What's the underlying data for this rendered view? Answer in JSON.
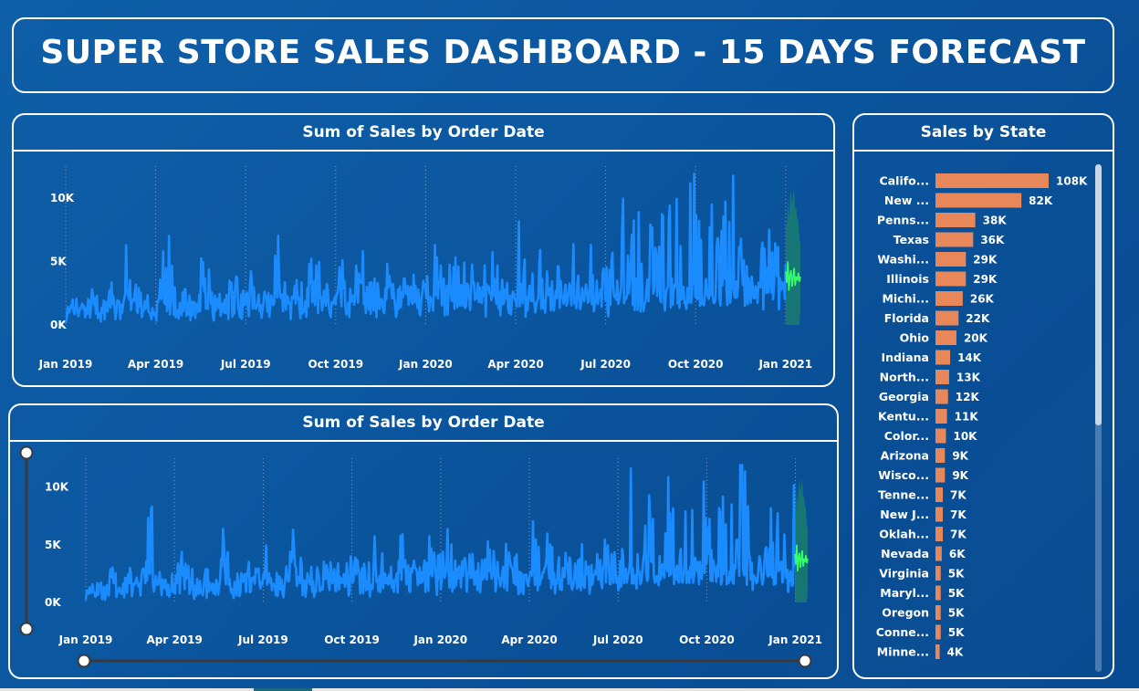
{
  "title": "SUPER STORE SALES DASHBOARD - 15 DAYS FORECAST",
  "colors": {
    "actual_line": "#1a8cff",
    "forecast_line": "#33ff66",
    "forecast_band": "#1e8a62",
    "bar": "#e8875a",
    "panel_border": "#ffffff",
    "background": "#0b57a0"
  },
  "chart1": {
    "header": "Sum of Sales by Order Date"
  },
  "chart2": {
    "header": "Sum of Sales by Order Date"
  },
  "state_panel": {
    "header": "Sales by State"
  },
  "chart_data": [
    {
      "type": "line",
      "title": "Sum of Sales by Order Date",
      "x_tick_labels": [
        "Jan 2019",
        "Apr 2019",
        "Jul 2019",
        "Oct 2019",
        "Jan 2020",
        "Apr 2020",
        "Jul 2020",
        "Oct 2020",
        "Jan 2021"
      ],
      "y_tick_labels": [
        "10K",
        "5K",
        "0K"
      ],
      "y_ticks": [
        10000,
        5000,
        0
      ],
      "ylim": [
        0,
        12500
      ],
      "x_range": [
        "2019-01-01",
        "2021-01-15"
      ],
      "grid": "vertical dotted",
      "series": [
        {
          "kind": "actual",
          "values_sampled": [
            900,
            1800,
            1200,
            2600,
            1400,
            3200,
            1100,
            8200,
            2600,
            1700,
            2300,
            6900,
            1500,
            2800,
            1800,
            5300,
            2200,
            1900,
            3600,
            2400,
            4500,
            2100,
            2900,
            5600,
            1800,
            3100,
            2500,
            6000,
            2200,
            3400,
            4100,
            2700,
            5200,
            3000,
            2600,
            6300,
            2900,
            3800,
            4700,
            3200,
            5900,
            2800,
            4300,
            3600,
            6100,
            3300,
            4800,
            3900,
            2900,
            6700,
            3500,
            5100,
            4200,
            3300,
            4500,
            5400,
            3800,
            6600,
            4100,
            3700,
            9200,
            5200,
            7800,
            4600,
            10500,
            6300,
            8900,
            5800,
            11800,
            7200,
            9100,
            6400,
            10300,
            7700,
            5900,
            8800,
            6800,
            4900,
            8500
          ]
        },
        {
          "kind": "forecast",
          "values_sampled": [
            4200,
            3300,
            5000,
            2700,
            3900,
            4300,
            3000,
            3700,
            4500,
            3100,
            3800,
            3500,
            4100,
            3400,
            3800
          ]
        }
      ]
    },
    {
      "type": "line",
      "title": "Sum of Sales by Order Date",
      "x_tick_labels": [
        "Jan 2019",
        "Apr 2019",
        "Jul 2019",
        "Oct 2019",
        "Jan 2020",
        "Apr 2020",
        "Jul 2020",
        "Oct 2020",
        "Jan 2021"
      ],
      "y_tick_labels": [
        "10K",
        "5K",
        "0K"
      ],
      "y_ticks": [
        10000,
        5000,
        0
      ],
      "ylim": [
        0,
        12500
      ],
      "x_range": [
        "2019-01-01",
        "2021-01-15"
      ],
      "grid": "vertical dotted",
      "series": [
        {
          "kind": "actual",
          "values_sampled": [
            900,
            1800,
            1200,
            2600,
            1400,
            3200,
            1100,
            8200,
            2600,
            1700,
            2300,
            6900,
            1500,
            2800,
            1800,
            5300,
            2200,
            1900,
            3600,
            2400,
            4500,
            2100,
            2900,
            5600,
            1800,
            3100,
            2500,
            6000,
            2200,
            3400,
            4100,
            2700,
            5200,
            3000,
            2600,
            6300,
            2900,
            3800,
            4700,
            3200,
            5900,
            2800,
            4300,
            3600,
            6100,
            3300,
            4800,
            3900,
            2900,
            6700,
            3500,
            5100,
            4200,
            3300,
            4500,
            5400,
            3800,
            6600,
            4100,
            3700,
            9200,
            5200,
            7800,
            4600,
            10500,
            6300,
            8900,
            5800,
            11800,
            7200,
            9100,
            6400,
            10300,
            7700,
            5900,
            8800,
            6800,
            4900,
            8500
          ]
        },
        {
          "kind": "forecast",
          "values_sampled": [
            4200,
            3300,
            5000,
            2700,
            3900,
            4300,
            3000,
            3700,
            4500,
            3100,
            3800,
            3500,
            4100,
            3400,
            3800
          ]
        }
      ]
    },
    {
      "type": "bar",
      "orientation": "horizontal",
      "title": "Sales by State",
      "categories": [
        "Califo...",
        "New ...",
        "Penns...",
        "Texas",
        "Washi...",
        "Illinois",
        "Michi...",
        "Florida",
        "Ohio",
        "Indiana",
        "North...",
        "Georgia",
        "Kentu...",
        "Color...",
        "Arizona",
        "Wisco...",
        "Tenne...",
        "New J...",
        "Oklah...",
        "Nevada",
        "Virginia",
        "Maryl...",
        "Oregon",
        "Conne...",
        "Minne..."
      ],
      "values": [
        108000,
        82000,
        38000,
        36000,
        29000,
        29000,
        26000,
        22000,
        20000,
        14000,
        13000,
        12000,
        11000,
        10000,
        9000,
        9000,
        7000,
        7000,
        7000,
        6000,
        5000,
        5000,
        5000,
        5000,
        4000
      ],
      "data_labels": [
        "108K",
        "82K",
        "38K",
        "36K",
        "29K",
        "29K",
        "26K",
        "22K",
        "20K",
        "14K",
        "13K",
        "12K",
        "11K",
        "10K",
        "9K",
        "9K",
        "7K",
        "7K",
        "7K",
        "6K",
        "5K",
        "5K",
        "5K",
        "5K",
        "4K"
      ]
    }
  ]
}
